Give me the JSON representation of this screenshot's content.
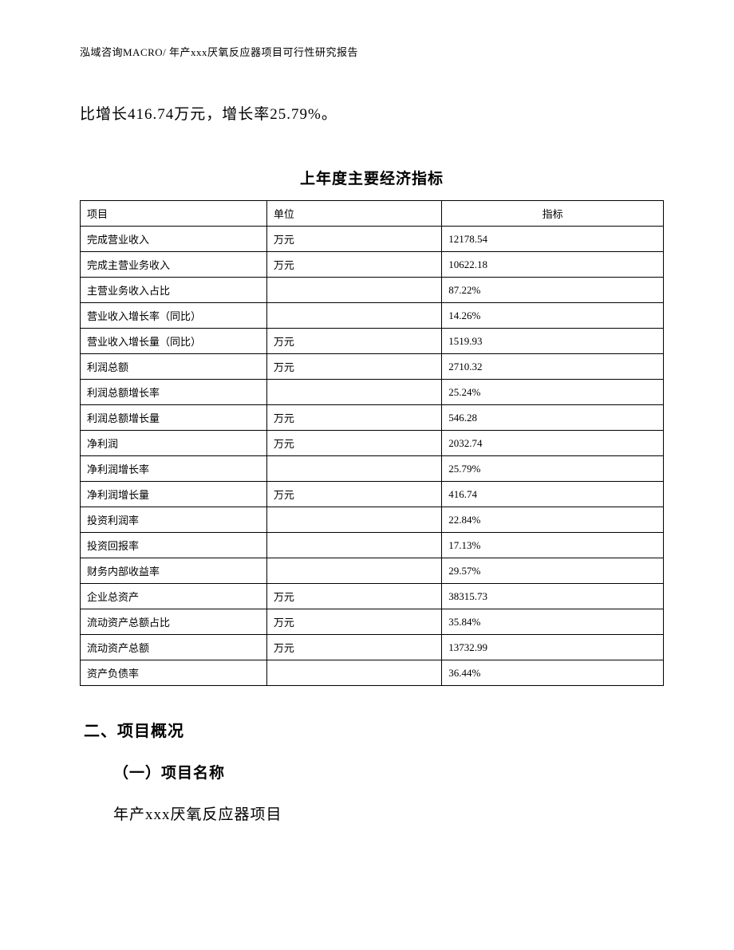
{
  "header": "泓域咨询MACRO/ 年产xxx厌氧反应器项目可行性研究报告",
  "intro": "比增长416.74万元，增长率25.79%。",
  "table": {
    "title": "上年度主要经济指标",
    "columns": [
      "项目",
      "单位",
      "指标"
    ],
    "rows": [
      [
        "完成营业收入",
        "万元",
        "12178.54"
      ],
      [
        "完成主营业务收入",
        "万元",
        "10622.18"
      ],
      [
        "主营业务收入占比",
        "",
        "87.22%"
      ],
      [
        "营业收入增长率（同比）",
        "",
        "14.26%"
      ],
      [
        "营业收入增长量（同比）",
        "万元",
        "1519.93"
      ],
      [
        "利润总额",
        "万元",
        "2710.32"
      ],
      [
        "利润总额增长率",
        "",
        "25.24%"
      ],
      [
        "利润总额增长量",
        "万元",
        "546.28"
      ],
      [
        "净利润",
        "万元",
        "2032.74"
      ],
      [
        "净利润增长率",
        "",
        "25.79%"
      ],
      [
        "净利润增长量",
        "万元",
        "416.74"
      ],
      [
        "投资利润率",
        "",
        "22.84%"
      ],
      [
        "投资回报率",
        "",
        "17.13%"
      ],
      [
        "财务内部收益率",
        "",
        "29.57%"
      ],
      [
        "企业总资产",
        "万元",
        "38315.73"
      ],
      [
        "流动资产总额占比",
        "万元",
        "35.84%"
      ],
      [
        "流动资产总额",
        "万元",
        "13732.99"
      ],
      [
        "资产负债率",
        "",
        "36.44%"
      ]
    ]
  },
  "section": {
    "heading": "二、项目概况",
    "sub_heading": "（一）项目名称",
    "project_name": "年产xxx厌氧反应器项目"
  }
}
